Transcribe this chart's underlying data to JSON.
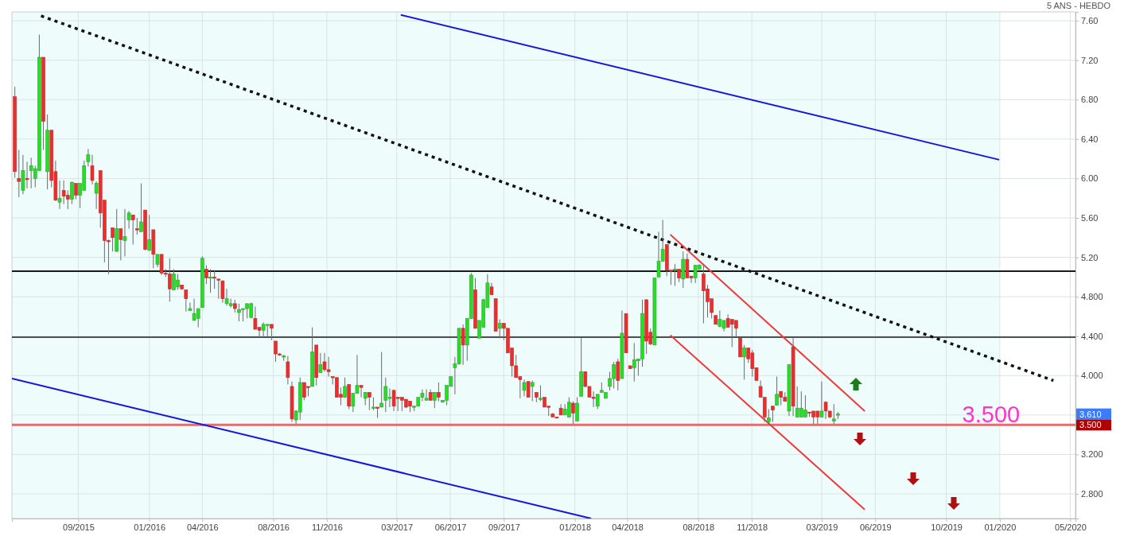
{
  "chart_data": {
    "type": "candlestick",
    "subtitle": "5 ANS - HEBDO",
    "xlim": [
      "2015-05-10",
      "2020-05-10"
    ],
    "xticks": [
      {
        "value": "2015-09-01",
        "label": "09/2015"
      },
      {
        "value": "2016-01-01",
        "label": "01/2016"
      },
      {
        "value": "2016-04-01",
        "label": "04/2016"
      },
      {
        "value": "2016-08-01",
        "label": "08/2016"
      },
      {
        "value": "2016-11-01",
        "label": "11/2016"
      },
      {
        "value": "2017-03-01",
        "label": "03/2017"
      },
      {
        "value": "2017-06-01",
        "label": "06/2017"
      },
      {
        "value": "2017-09-01",
        "label": "09/2017"
      },
      {
        "value": "2018-01-01",
        "label": "01/2018"
      },
      {
        "value": "2018-04-01",
        "label": "04/2018"
      },
      {
        "value": "2018-08-01",
        "label": "08/2018"
      },
      {
        "value": "2018-11-01",
        "label": "11/2018"
      },
      {
        "value": "2019-03-01",
        "label": "03/2019"
      },
      {
        "value": "2019-06-01",
        "label": "06/2019"
      },
      {
        "value": "2019-10-01",
        "label": "10/2019"
      },
      {
        "value": "2020-01-01",
        "label": "01/2020"
      },
      {
        "value": "2020-05-01",
        "label": "05/2020"
      }
    ],
    "ylim": [
      2.55,
      7.69
    ],
    "yticks": [
      {
        "value": 2.8,
        "label": "2.800"
      },
      {
        "value": 3.2,
        "label": "3.200"
      },
      {
        "value": 3.6,
        "label": null
      },
      {
        "value": 4.0,
        "label": "4.000"
      },
      {
        "value": 4.4,
        "label": "4.400"
      },
      {
        "value": 4.8,
        "label": "4.800"
      },
      {
        "value": 5.2,
        "label": "5.20"
      },
      {
        "value": 5.6,
        "label": "5.60"
      },
      {
        "value": 6.0,
        "label": "6.00"
      },
      {
        "value": 6.4,
        "label": "6.40"
      },
      {
        "value": 6.8,
        "label": "6.80"
      },
      {
        "value": 7.2,
        "label": "7.20"
      },
      {
        "value": 7.6,
        "label": "7.60"
      }
    ],
    "grid": true,
    "x": [
      "2015-05-15",
      "2015-05-22",
      "2015-05-29",
      "2015-06-05",
      "2015-06-12",
      "2015-06-19",
      "2015-06-26",
      "2015-07-03",
      "2015-07-10",
      "2015-07-17",
      "2015-07-24",
      "2015-07-31",
      "2015-08-07",
      "2015-08-14",
      "2015-08-21",
      "2015-08-28",
      "2015-09-04",
      "2015-09-11",
      "2015-09-18",
      "2015-09-25",
      "2015-10-02",
      "2015-10-09",
      "2015-10-16",
      "2015-10-23",
      "2015-10-30",
      "2015-11-06",
      "2015-11-13",
      "2015-11-20",
      "2015-11-27",
      "2015-12-04",
      "2015-12-11",
      "2015-12-18",
      "2015-12-25",
      "2016-01-01",
      "2016-01-08",
      "2016-01-15",
      "2016-01-22",
      "2016-01-29",
      "2016-02-05",
      "2016-02-12",
      "2016-02-19",
      "2016-02-26",
      "2016-03-04",
      "2016-03-11",
      "2016-03-18",
      "2016-03-25",
      "2016-04-01",
      "2016-04-08",
      "2016-04-15",
      "2016-04-22",
      "2016-04-29",
      "2016-05-06",
      "2016-05-13",
      "2016-05-20",
      "2016-05-27",
      "2016-06-03",
      "2016-06-10",
      "2016-06-17",
      "2016-06-24",
      "2016-07-01",
      "2016-07-08",
      "2016-07-15",
      "2016-07-22",
      "2016-07-29",
      "2016-08-05",
      "2016-08-12",
      "2016-08-19",
      "2016-08-26",
      "2016-09-02",
      "2016-09-09",
      "2016-09-16",
      "2016-09-23",
      "2016-09-30",
      "2016-10-07",
      "2016-10-14",
      "2016-10-21",
      "2016-10-28",
      "2016-11-04",
      "2016-11-11",
      "2016-11-18",
      "2016-11-25",
      "2016-12-02",
      "2016-12-09",
      "2016-12-16",
      "2016-12-23",
      "2016-12-30",
      "2017-01-06",
      "2017-01-13",
      "2017-01-20",
      "2017-01-27",
      "2017-02-03",
      "2017-02-10",
      "2017-02-17",
      "2017-02-24",
      "2017-03-03",
      "2017-03-10",
      "2017-03-17",
      "2017-03-24",
      "2017-03-31",
      "2017-04-07",
      "2017-04-14",
      "2017-04-21",
      "2017-04-28",
      "2017-05-05",
      "2017-05-12",
      "2017-05-19",
      "2017-05-26",
      "2017-06-02",
      "2017-06-09",
      "2017-06-16",
      "2017-06-23",
      "2017-06-30",
      "2017-07-07",
      "2017-07-14",
      "2017-07-21",
      "2017-07-28",
      "2017-08-04",
      "2017-08-11",
      "2017-08-18",
      "2017-08-25",
      "2017-09-01",
      "2017-09-08",
      "2017-09-15",
      "2017-09-22",
      "2017-09-29",
      "2017-10-06",
      "2017-10-13",
      "2017-10-20",
      "2017-10-27",
      "2017-11-03",
      "2017-11-10",
      "2017-11-17",
      "2017-11-24",
      "2017-12-01",
      "2017-12-08",
      "2017-12-15",
      "2017-12-22",
      "2017-12-29",
      "2018-01-05",
      "2018-01-12",
      "2018-01-19",
      "2018-01-26",
      "2018-02-02",
      "2018-02-09",
      "2018-02-16",
      "2018-02-23",
      "2018-03-02",
      "2018-03-09",
      "2018-03-16",
      "2018-03-23",
      "2018-03-30",
      "2018-04-06",
      "2018-04-13",
      "2018-04-20",
      "2018-04-27",
      "2018-05-04",
      "2018-05-11",
      "2018-05-18",
      "2018-05-25",
      "2018-06-01",
      "2018-06-08",
      "2018-06-15",
      "2018-06-22",
      "2018-06-29",
      "2018-07-06",
      "2018-07-13",
      "2018-07-20",
      "2018-07-27",
      "2018-08-03",
      "2018-08-10",
      "2018-08-17",
      "2018-08-24",
      "2018-08-31",
      "2018-09-07",
      "2018-09-14",
      "2018-09-21",
      "2018-09-28",
      "2018-10-05",
      "2018-10-12",
      "2018-10-19",
      "2018-10-26",
      "2018-11-02",
      "2018-11-09",
      "2018-11-16",
      "2018-11-23",
      "2018-11-30",
      "2018-12-07",
      "2018-12-14",
      "2018-12-21",
      "2018-12-28",
      "2019-01-04",
      "2019-01-11",
      "2019-01-18",
      "2019-01-25",
      "2019-02-01",
      "2019-02-08",
      "2019-02-15",
      "2019-02-22",
      "2019-03-01",
      "2019-03-08",
      "2019-03-15",
      "2019-03-22",
      "2019-03-29"
    ],
    "ohlc": [
      [
        6.83,
        6.93,
        6.01,
        6.07
      ],
      [
        6.0,
        6.29,
        5.81,
        5.97
      ],
      [
        5.88,
        6.24,
        5.84,
        6.08
      ],
      [
        6.0,
        6.17,
        5.9,
        5.99
      ],
      [
        6.08,
        6.21,
        5.9,
        6.13
      ],
      [
        6.0,
        6.13,
        5.91,
        6.1
      ],
      [
        6.08,
        7.46,
        6.08,
        7.23
      ],
      [
        7.23,
        7.23,
        6.29,
        6.58
      ],
      [
        6.07,
        6.65,
        5.89,
        6.49
      ],
      [
        6.49,
        6.49,
        5.91,
        5.98
      ],
      [
        6.07,
        6.18,
        5.77,
        5.78
      ],
      [
        5.76,
        5.98,
        5.69,
        5.8
      ],
      [
        5.88,
        5.98,
        5.74,
        5.82
      ],
      [
        5.83,
        5.88,
        5.69,
        5.79
      ],
      [
        5.79,
        5.97,
        5.74,
        5.96
      ],
      [
        5.95,
        5.95,
        5.79,
        5.83
      ],
      [
        5.83,
        5.95,
        5.7,
        5.95
      ],
      [
        5.88,
        6.18,
        5.88,
        6.13
      ],
      [
        6.17,
        6.3,
        6.12,
        6.24
      ],
      [
        6.13,
        6.24,
        5.94,
        5.98
      ],
      [
        5.85,
        5.97,
        5.69,
        5.95
      ],
      [
        6.08,
        6.08,
        5.5,
        5.65
      ],
      [
        5.78,
        5.78,
        5.15,
        5.37
      ],
      [
        5.37,
        5.38,
        5.03,
        5.36
      ],
      [
        5.5,
        5.5,
        5.26,
        5.4
      ],
      [
        5.26,
        5.69,
        5.26,
        5.49
      ],
      [
        5.49,
        5.49,
        5.17,
        5.38
      ],
      [
        5.37,
        5.69,
        5.21,
        5.41
      ],
      [
        5.58,
        5.67,
        5.49,
        5.65
      ],
      [
        5.63,
        5.63,
        5.33,
        5.58
      ],
      [
        5.49,
        5.6,
        5.43,
        5.48
      ],
      [
        5.46,
        5.95,
        5.46,
        5.56
      ],
      [
        5.68,
        5.68,
        5.27,
        5.28
      ],
      [
        5.27,
        5.63,
        5.27,
        5.38
      ],
      [
        5.48,
        5.48,
        5.09,
        5.23
      ],
      [
        5.13,
        5.23,
        5.1,
        5.23
      ],
      [
        5.23,
        5.23,
        5.02,
        5.04
      ],
      [
        5.04,
        5.08,
        5.0,
        5.03
      ],
      [
        5.03,
        5.19,
        4.75,
        4.88
      ],
      [
        4.87,
        5.08,
        4.87,
        5.03
      ],
      [
        4.9,
        5.03,
        4.87,
        4.97
      ],
      [
        4.92,
        4.92,
        4.87,
        4.88
      ],
      [
        4.87,
        4.87,
        4.65,
        4.78
      ],
      [
        4.66,
        4.74,
        4.66,
        4.68
      ],
      [
        4.56,
        4.78,
        4.56,
        4.63
      ],
      [
        4.58,
        4.68,
        4.49,
        4.68
      ],
      [
        4.69,
        5.21,
        4.69,
        5.19
      ],
      [
        5.08,
        5.12,
        4.93,
        4.99
      ],
      [
        4.99,
        5.08,
        4.84,
        5.0
      ],
      [
        5.0,
        5.07,
        4.88,
        4.99
      ],
      [
        4.98,
        4.98,
        4.78,
        4.97
      ],
      [
        4.96,
        4.97,
        4.74,
        4.78
      ],
      [
        4.73,
        4.88,
        4.71,
        4.78
      ],
      [
        4.71,
        4.78,
        4.69,
        4.73
      ],
      [
        4.73,
        4.77,
        4.64,
        4.68
      ],
      [
        4.64,
        4.73,
        4.55,
        4.67
      ],
      [
        4.68,
        4.68,
        4.55,
        4.68
      ],
      [
        4.68,
        4.73,
        4.58,
        4.73
      ],
      [
        4.59,
        4.74,
        4.58,
        4.73
      ],
      [
        4.58,
        4.7,
        4.47,
        4.47
      ],
      [
        4.49,
        4.49,
        4.39,
        4.46
      ],
      [
        4.46,
        4.54,
        4.39,
        4.52
      ],
      [
        4.52,
        4.52,
        4.4,
        4.52
      ],
      [
        4.52,
        4.52,
        4.36,
        4.48
      ],
      [
        4.35,
        4.35,
        4.14,
        4.22
      ],
      [
        4.22,
        4.23,
        4.2,
        4.21
      ],
      [
        4.2,
        4.21,
        4.15,
        4.2
      ],
      [
        4.14,
        4.2,
        3.91,
        3.98
      ],
      [
        3.89,
        3.94,
        3.53,
        3.56
      ],
      [
        3.55,
        3.65,
        3.51,
        3.64
      ],
      [
        3.63,
        3.98,
        3.55,
        3.93
      ],
      [
        3.93,
        3.93,
        3.75,
        3.78
      ],
      [
        3.89,
        3.89,
        3.79,
        3.88
      ],
      [
        3.89,
        4.49,
        3.89,
        4.24
      ],
      [
        4.31,
        4.31,
        3.9,
        3.98
      ],
      [
        4.03,
        4.23,
        4.03,
        4.11
      ],
      [
        4.14,
        4.23,
        4.04,
        4.06
      ],
      [
        4.06,
        4.19,
        3.99,
        4.04
      ],
      [
        3.99,
        3.99,
        3.91,
        3.98
      ],
      [
        3.98,
        3.98,
        3.78,
        3.78
      ],
      [
        3.81,
        3.88,
        3.7,
        3.78
      ],
      [
        3.78,
        3.98,
        3.78,
        3.89
      ],
      [
        3.91,
        3.91,
        3.66,
        3.69
      ],
      [
        3.69,
        3.82,
        3.63,
        3.82
      ],
      [
        3.82,
        4.21,
        3.82,
        3.9
      ],
      [
        3.9,
        3.9,
        3.78,
        3.88
      ],
      [
        3.77,
        3.83,
        3.7,
        3.83
      ],
      [
        3.83,
        3.83,
        3.65,
        3.78
      ],
      [
        3.68,
        3.78,
        3.65,
        3.68
      ],
      [
        3.68,
        3.68,
        3.57,
        3.67
      ],
      [
        3.68,
        4.24,
        3.68,
        3.72
      ],
      [
        3.75,
        3.98,
        3.63,
        3.89
      ],
      [
        3.78,
        3.87,
        3.68,
        3.78
      ],
      [
        3.85,
        3.86,
        3.64,
        3.69
      ],
      [
        3.78,
        3.78,
        3.64,
        3.77
      ],
      [
        3.78,
        3.78,
        3.64,
        3.75
      ],
      [
        3.76,
        3.76,
        3.67,
        3.68
      ],
      [
        3.74,
        3.74,
        3.63,
        3.69
      ],
      [
        3.69,
        3.69,
        3.64,
        3.69
      ],
      [
        3.69,
        3.78,
        3.69,
        3.78
      ],
      [
        3.78,
        3.86,
        3.74,
        3.82
      ],
      [
        3.75,
        3.86,
        3.75,
        3.77
      ],
      [
        3.83,
        3.86,
        3.75,
        3.75
      ],
      [
        3.75,
        3.83,
        3.67,
        3.83
      ],
      [
        3.83,
        3.93,
        3.74,
        3.78
      ],
      [
        3.73,
        3.75,
        3.73,
        3.75
      ],
      [
        3.75,
        3.9,
        3.7,
        3.9
      ],
      [
        3.89,
        3.99,
        3.89,
        3.99
      ],
      [
        4.08,
        4.19,
        3.81,
        4.12
      ],
      [
        4.12,
        4.48,
        4.11,
        4.48
      ],
      [
        4.48,
        4.52,
        4.11,
        4.31
      ],
      [
        4.31,
        4.58,
        4.15,
        4.58
      ],
      [
        4.58,
        5.04,
        4.58,
        5.02
      ],
      [
        4.87,
        4.99,
        4.48,
        4.48
      ],
      [
        4.38,
        4.56,
        4.38,
        4.56
      ],
      [
        4.49,
        4.78,
        4.49,
        4.77
      ],
      [
        4.69,
        5.03,
        4.69,
        4.94
      ],
      [
        4.9,
        4.94,
        4.82,
        4.82
      ],
      [
        4.78,
        4.78,
        4.45,
        4.45
      ],
      [
        4.48,
        4.57,
        4.38,
        4.53
      ],
      [
        4.53,
        4.53,
        4.36,
        4.48
      ],
      [
        4.48,
        4.48,
        4.23,
        4.23
      ],
      [
        4.28,
        4.28,
        3.99,
        4.1
      ],
      [
        4.1,
        4.21,
        3.98,
        3.98
      ],
      [
        3.99,
        3.99,
        3.77,
        3.96
      ],
      [
        3.85,
        3.96,
        3.79,
        3.93
      ],
      [
        3.94,
        3.94,
        3.78,
        3.78
      ],
      [
        3.89,
        3.95,
        3.74,
        3.93
      ],
      [
        3.83,
        3.83,
        3.73,
        3.78
      ],
      [
        3.77,
        3.9,
        3.74,
        3.77
      ],
      [
        3.78,
        3.78,
        3.68,
        3.68
      ],
      [
        3.69,
        3.69,
        3.59,
        3.68
      ],
      [
        3.61,
        3.62,
        3.58,
        3.58
      ],
      [
        3.58,
        3.58,
        3.57,
        3.57
      ],
      [
        3.67,
        3.71,
        3.6,
        3.6
      ],
      [
        3.6,
        3.71,
        3.6,
        3.66
      ],
      [
        3.58,
        3.78,
        3.58,
        3.73
      ],
      [
        3.72,
        3.74,
        3.51,
        3.62
      ],
      [
        3.54,
        3.78,
        3.54,
        3.72
      ],
      [
        3.79,
        4.38,
        3.79,
        4.04
      ],
      [
        4.04,
        4.04,
        3.88,
        3.89
      ],
      [
        3.89,
        3.89,
        3.78,
        3.78
      ],
      [
        3.78,
        3.84,
        3.68,
        3.77
      ],
      [
        3.69,
        3.81,
        3.66,
        3.81
      ],
      [
        3.83,
        3.93,
        3.83,
        3.85
      ],
      [
        3.77,
        3.83,
        3.77,
        3.83
      ],
      [
        3.89,
        4.04,
        3.85,
        3.97
      ],
      [
        3.97,
        4.14,
        3.87,
        4.11
      ],
      [
        4.14,
        4.17,
        3.85,
        3.95
      ],
      [
        3.97,
        4.66,
        3.97,
        4.43
      ],
      [
        4.63,
        4.63,
        4.23,
        4.23
      ],
      [
        4.1,
        4.1,
        4.07,
        4.07
      ],
      [
        4.08,
        4.33,
        3.94,
        4.16
      ],
      [
        4.15,
        4.17,
        4.0,
        4.17
      ],
      [
        4.17,
        4.77,
        4.09,
        4.63
      ],
      [
        4.77,
        4.77,
        4.22,
        4.35
      ],
      [
        4.44,
        4.48,
        4.31,
        4.32
      ],
      [
        4.31,
        4.99,
        4.31,
        4.99
      ],
      [
        5.0,
        5.46,
        5.0,
        5.16
      ],
      [
        5.16,
        5.58,
        5.16,
        5.28
      ],
      [
        5.33,
        5.33,
        5.01,
        5.07
      ],
      [
        5.07,
        5.07,
        4.92,
        5.06
      ],
      [
        5.08,
        5.13,
        4.91,
        5.08
      ],
      [
        5.08,
        5.08,
        4.95,
        4.99
      ],
      [
        4.98,
        5.26,
        4.89,
        5.18
      ],
      [
        5.18,
        5.24,
        4.99,
        4.99
      ],
      [
        5.01,
        5.01,
        4.94,
        4.99
      ],
      [
        4.99,
        5.12,
        4.94,
        5.12
      ],
      [
        5.08,
        5.13,
        5.08,
        5.12
      ],
      [
        5.03,
        5.13,
        4.53,
        4.86
      ],
      [
        4.88,
        4.92,
        4.59,
        4.75
      ],
      [
        4.78,
        4.78,
        4.58,
        4.64
      ],
      [
        4.61,
        4.61,
        4.52,
        4.52
      ],
      [
        4.5,
        4.66,
        4.49,
        4.57
      ],
      [
        4.48,
        4.56,
        4.45,
        4.56
      ],
      [
        4.58,
        4.62,
        4.49,
        4.49
      ],
      [
        4.57,
        4.57,
        4.29,
        4.52
      ],
      [
        4.56,
        4.56,
        4.39,
        4.48
      ],
      [
        4.38,
        4.38,
        4.19,
        4.19
      ],
      [
        4.19,
        4.31,
        3.96,
        4.28
      ],
      [
        4.28,
        4.28,
        4.13,
        4.17
      ],
      [
        4.23,
        4.26,
        3.99,
        4.07
      ],
      [
        4.08,
        4.08,
        3.95,
        3.95
      ],
      [
        3.89,
        3.95,
        3.78,
        3.78
      ],
      [
        3.78,
        3.78,
        3.53,
        3.58
      ],
      [
        3.53,
        3.66,
        3.5,
        3.57
      ],
      [
        3.69,
        3.69,
        3.53,
        3.65
      ],
      [
        3.7,
        3.99,
        3.7,
        3.81
      ],
      [
        3.84,
        3.84,
        3.7,
        3.78
      ],
      [
        3.78,
        3.83,
        3.74,
        3.74
      ],
      [
        3.64,
        4.11,
        3.59,
        4.11
      ],
      [
        4.29,
        4.38,
        3.59,
        3.69
      ],
      [
        3.58,
        3.89,
        3.58,
        3.67
      ],
      [
        3.58,
        3.84,
        3.58,
        3.67
      ],
      [
        3.58,
        3.8,
        3.58,
        3.65
      ],
      [
        3.63,
        3.63,
        3.58,
        3.62
      ],
      [
        3.64,
        3.64,
        3.51,
        3.58
      ],
      [
        3.64,
        3.64,
        3.51,
        3.58
      ],
      [
        3.58,
        3.94,
        3.58,
        3.64
      ],
      [
        3.73,
        3.74,
        3.56,
        3.64
      ],
      [
        3.64,
        3.64,
        3.57,
        3.58
      ],
      [
        3.54,
        3.71,
        3.51,
        3.56
      ],
      [
        3.6,
        3.63,
        3.56,
        3.61
      ]
    ],
    "series": [
      {
        "type": "line",
        "x": [
          "2017-03-08",
          "2019-12-31"
        ],
        "values": [
          7.66,
          6.19
        ],
        "color": "#1515e0",
        "line_style": "solid"
      },
      {
        "type": "line",
        "x": [
          "2015-05-10",
          "2018-01-29"
        ],
        "values": [
          3.97,
          2.55
        ],
        "color": "#1515e0",
        "line_style": "solid"
      },
      {
        "type": "line",
        "x": [
          "2015-06-29",
          "2020-04-02"
        ],
        "values": [
          7.65,
          3.95
        ],
        "color": "#111111",
        "line_style": "dotted"
      },
      {
        "type": "line",
        "x": [
          "2018-06-14",
          "2019-05-14"
        ],
        "values": [
          5.43,
          3.64
        ],
        "color": "#f03a3a",
        "line_style": "solid"
      },
      {
        "type": "line",
        "x": [
          "2018-06-14",
          "2019-05-14"
        ],
        "values": [
          4.41,
          2.64
        ],
        "color": "#f03a3a",
        "line_style": "solid"
      }
    ],
    "ref_lines": [
      {
        "axis": "y",
        "value": 5.06,
        "color": "#1a1a1a"
      },
      {
        "axis": "y",
        "value": 4.39,
        "color": "#1a1a1a"
      },
      {
        "axis": "y",
        "value": 3.5,
        "color": "#ff6262",
        "label": "3.500"
      }
    ],
    "bands": [
      {
        "axis": "x",
        "from": "2015-05-10",
        "to": "2019-12-31",
        "color": "#effcfc"
      }
    ],
    "annotations": [
      "3.610",
      {
        "text": "3.500",
        "x": "2019-12-17",
        "y": 3.5
      }
    ]
  }
}
